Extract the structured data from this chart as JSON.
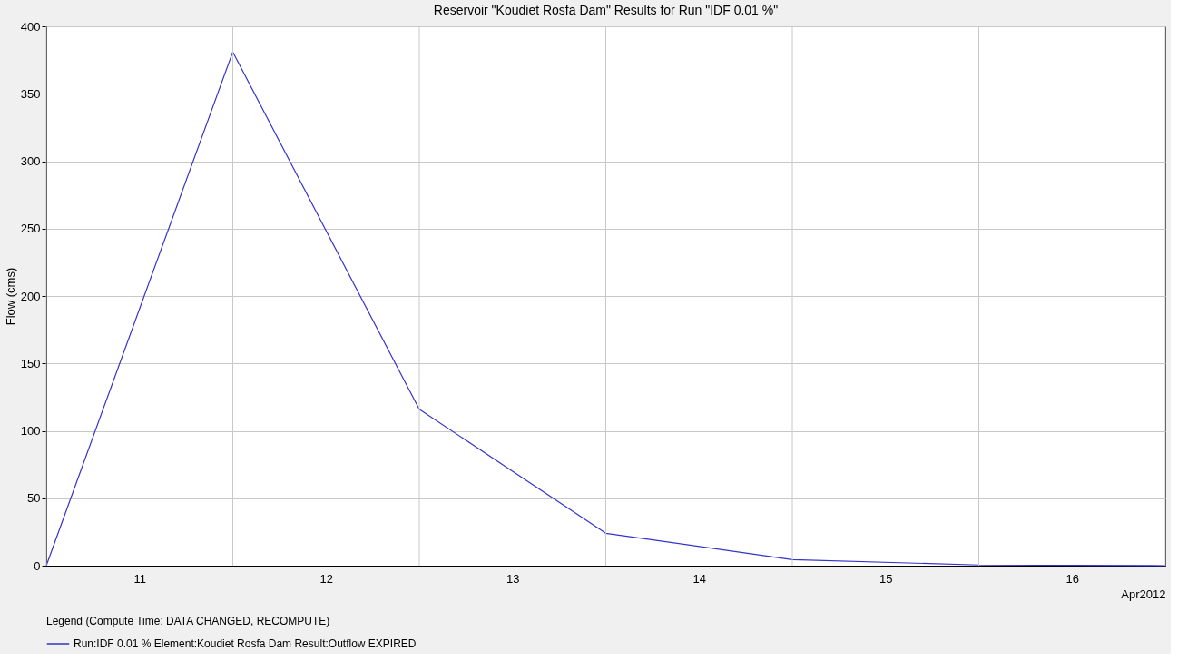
{
  "chart_data": {
    "type": "line",
    "title": "Reservoir \"Koudiet Rosfa Dam\" Results for Run \"IDF 0.01 %\"",
    "ylabel": "Flow (cms)",
    "xlabel": "Apr2012",
    "legend_title": "Legend (Compute Time: DATA CHANGED, RECOMPUTE)",
    "x": [
      "2012-04-11T00:00",
      "2012-04-12T00:00",
      "2012-04-13T00:00",
      "2012-04-14T00:00",
      "2012-04-15T00:00",
      "2012-04-16T00:00",
      "2012-04-17T00:00"
    ],
    "series": [
      {
        "name": "Run:IDF 0.01 % Element:Koudiet Rosfa Dam Result:Outflow EXPIRED",
        "color": "#3333cc",
        "values": [
          0,
          381,
          116,
          24,
          4.5,
          0.5,
          0
        ]
      }
    ],
    "xlim": [
      "2012-04-11T00:00",
      "2012-04-17T00:00"
    ],
    "xticks": [
      {
        "value": "2012-04-11T00:00",
        "label": null
      },
      {
        "value": "2012-04-11T12:00",
        "label": "11"
      },
      {
        "value": "2012-04-12T00:00",
        "label": null
      },
      {
        "value": "2012-04-12T12:00",
        "label": "12"
      },
      {
        "value": "2012-04-13T00:00",
        "label": null
      },
      {
        "value": "2012-04-13T12:00",
        "label": "13"
      },
      {
        "value": "2012-04-14T00:00",
        "label": null
      },
      {
        "value": "2012-04-14T12:00",
        "label": "14"
      },
      {
        "value": "2012-04-15T00:00",
        "label": null
      },
      {
        "value": "2012-04-15T12:00",
        "label": "15"
      },
      {
        "value": "2012-04-16T00:00",
        "label": null
      },
      {
        "value": "2012-04-16T12:00",
        "label": "16"
      },
      {
        "value": "2012-04-17T00:00",
        "label": null
      }
    ],
    "ylim": [
      0,
      400
    ],
    "yticks": [
      0,
      50,
      100,
      150,
      200,
      250,
      300,
      350,
      400
    ],
    "grid": true,
    "legend": "bottom left",
    "marker": "none",
    "line_style": "solid"
  }
}
